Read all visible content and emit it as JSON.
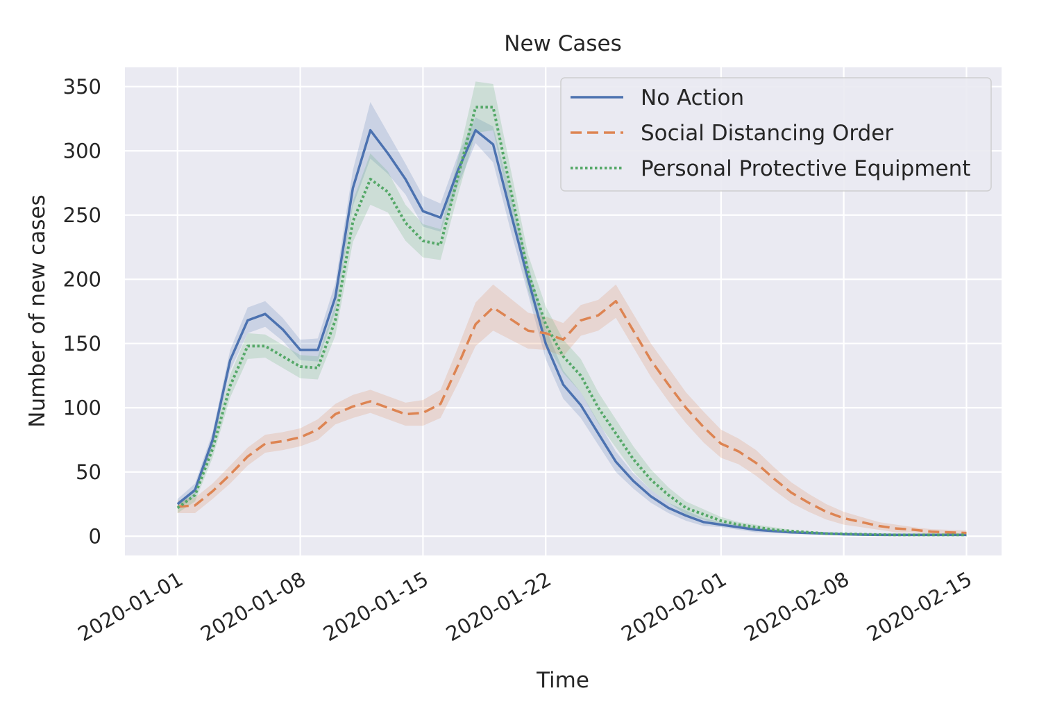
{
  "chart_data": {
    "type": "line",
    "title": "New Cases",
    "xlabel": "Time",
    "ylabel": "Number of new cases",
    "ylim": [
      -15,
      365
    ],
    "xlim": [
      "2019-12-29",
      "2020-02-17"
    ],
    "x_tick_labels": [
      "2020-01-01",
      "2020-01-08",
      "2020-01-15",
      "2020-01-22",
      "2020-02-01",
      "2020-02-08",
      "2020-02-15"
    ],
    "y_ticks": [
      0,
      50,
      100,
      150,
      200,
      250,
      300,
      350
    ],
    "grid": true,
    "legend_position": "top-right",
    "x": [
      "2020-01-01",
      "2020-01-02",
      "2020-01-03",
      "2020-01-04",
      "2020-01-05",
      "2020-01-06",
      "2020-01-07",
      "2020-01-08",
      "2020-01-09",
      "2020-01-10",
      "2020-01-11",
      "2020-01-12",
      "2020-01-13",
      "2020-01-14",
      "2020-01-15",
      "2020-01-16",
      "2020-01-17",
      "2020-01-18",
      "2020-01-19",
      "2020-01-20",
      "2020-01-21",
      "2020-01-22",
      "2020-01-23",
      "2020-01-24",
      "2020-01-25",
      "2020-01-26",
      "2020-01-27",
      "2020-01-28",
      "2020-01-29",
      "2020-01-30",
      "2020-01-31",
      "2020-02-01",
      "2020-02-02",
      "2020-02-03",
      "2020-02-04",
      "2020-02-05",
      "2020-02-06",
      "2020-02-07",
      "2020-02-08",
      "2020-02-09",
      "2020-02-10",
      "2020-02-11",
      "2020-02-12",
      "2020-02-13",
      "2020-02-14",
      "2020-02-15"
    ],
    "series": [
      {
        "name": "No Action",
        "color": "#4c72b0",
        "style": "solid",
        "values": [
          25,
          36,
          75,
          137,
          168,
          173,
          161,
          145,
          145,
          186,
          271,
          316,
          298,
          278,
          253,
          248,
          285,
          316,
          305,
          252,
          200,
          150,
          118,
          102,
          80,
          58,
          43,
          31,
          22,
          16,
          11,
          9,
          7,
          5,
          4,
          3,
          2.5,
          2,
          1.5,
          1.2,
          1,
          1,
          1,
          1,
          1,
          1
        ],
        "band": [
          4,
          5,
          6,
          8,
          10,
          10,
          9,
          8,
          9,
          11,
          14,
          22,
          16,
          12,
          12,
          11,
          12,
          10,
          14,
          14,
          12,
          12,
          11,
          10,
          9,
          8,
          6,
          5,
          4,
          4,
          3,
          2,
          2,
          2,
          1.5,
          1,
          1,
          1,
          1,
          1,
          1,
          1,
          1,
          1,
          1,
          1
        ]
      },
      {
        "name": "Social Distancing Order",
        "color": "#dd8452",
        "style": "dashed",
        "values": [
          23,
          24,
          35,
          48,
          62,
          72,
          74,
          77,
          83,
          95,
          101,
          105,
          100,
          95,
          96,
          103,
          133,
          165,
          178,
          169,
          160,
          158,
          153,
          168,
          172,
          183,
          160,
          137,
          118,
          100,
          85,
          72,
          66,
          57,
          45,
          34,
          26,
          19,
          14,
          11,
          8,
          6,
          5,
          3.5,
          3,
          2.5
        ],
        "band": [
          5,
          6,
          6,
          7,
          7,
          7,
          7,
          7,
          8,
          8,
          9,
          9,
          9,
          9,
          10,
          11,
          14,
          17,
          18,
          16,
          14,
          13,
          13,
          12,
          12,
          13,
          13,
          13,
          13,
          12,
          12,
          11,
          10,
          10,
          9,
          8,
          7,
          6,
          5,
          4,
          3,
          3,
          2,
          2,
          2,
          2
        ]
      },
      {
        "name": "Personal Protective Equipment",
        "color": "#55a868",
        "style": "dotted",
        "values": [
          22,
          32,
          68,
          117,
          148,
          148,
          140,
          132,
          131,
          168,
          245,
          278,
          268,
          244,
          230,
          227,
          280,
          334,
          334,
          270,
          205,
          165,
          140,
          125,
          100,
          80,
          60,
          44,
          32,
          22,
          17,
          12,
          9,
          7,
          5,
          4,
          3,
          2,
          1.8,
          1.5,
          1.2,
          1,
          1,
          1,
          1,
          1
        ],
        "band": [
          4,
          5,
          7,
          9,
          10,
          9,
          9,
          9,
          9,
          12,
          16,
          20,
          16,
          14,
          13,
          12,
          14,
          20,
          18,
          16,
          14,
          14,
          13,
          13,
          12,
          11,
          10,
          8,
          6,
          5,
          4,
          3,
          2,
          2,
          2,
          1,
          1,
          1,
          1,
          1,
          1,
          1,
          1,
          1,
          1,
          1
        ]
      }
    ]
  }
}
